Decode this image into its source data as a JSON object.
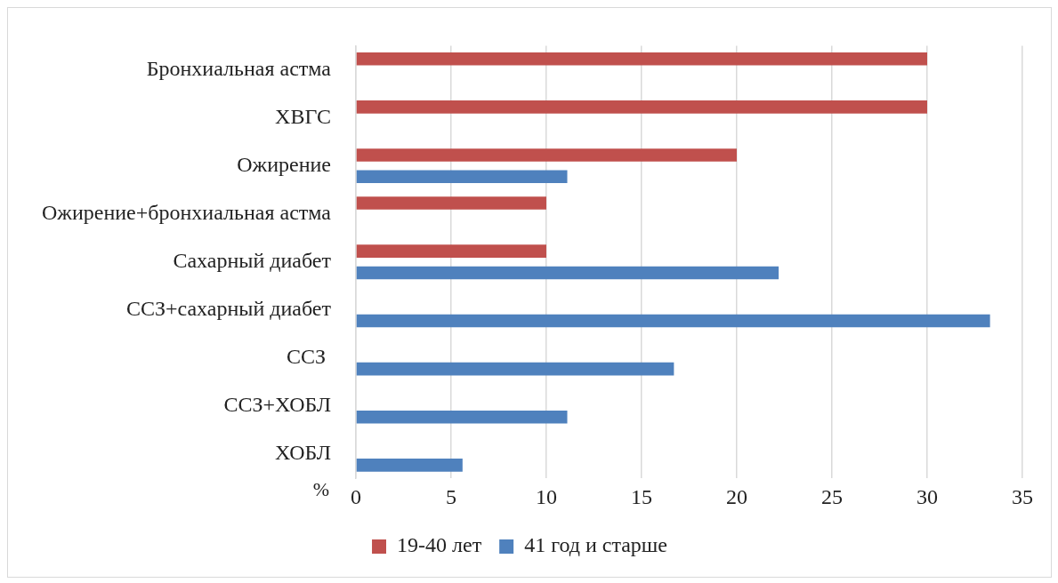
{
  "chart_data": {
    "type": "bar",
    "orientation": "horizontal",
    "xlabel": "%",
    "categories": [
      "Бронхиальная астма",
      "ХВГС",
      "Ожирение",
      "Ожирение+бронхиальная астма",
      "Сахарный диабет",
      "ССЗ+сахарный диабет",
      "ССЗ ",
      "ССЗ+ХОБЛ",
      "ХОБЛ"
    ],
    "series": [
      {
        "name": "19-40 лет",
        "color": "#c0504d",
        "values": [
          30,
          30,
          20,
          10,
          10,
          null,
          null,
          null,
          null
        ]
      },
      {
        "name": "41 год и старше",
        "color": "#4f81bd",
        "values": [
          null,
          null,
          11.1,
          null,
          22.2,
          33.3,
          16.7,
          11.1,
          5.6
        ]
      }
    ],
    "xlim": [
      0,
      35
    ],
    "xticks": [
      0,
      5,
      10,
      15,
      20,
      25,
      30,
      35
    ],
    "grid": "x",
    "legend": "bottom"
  }
}
